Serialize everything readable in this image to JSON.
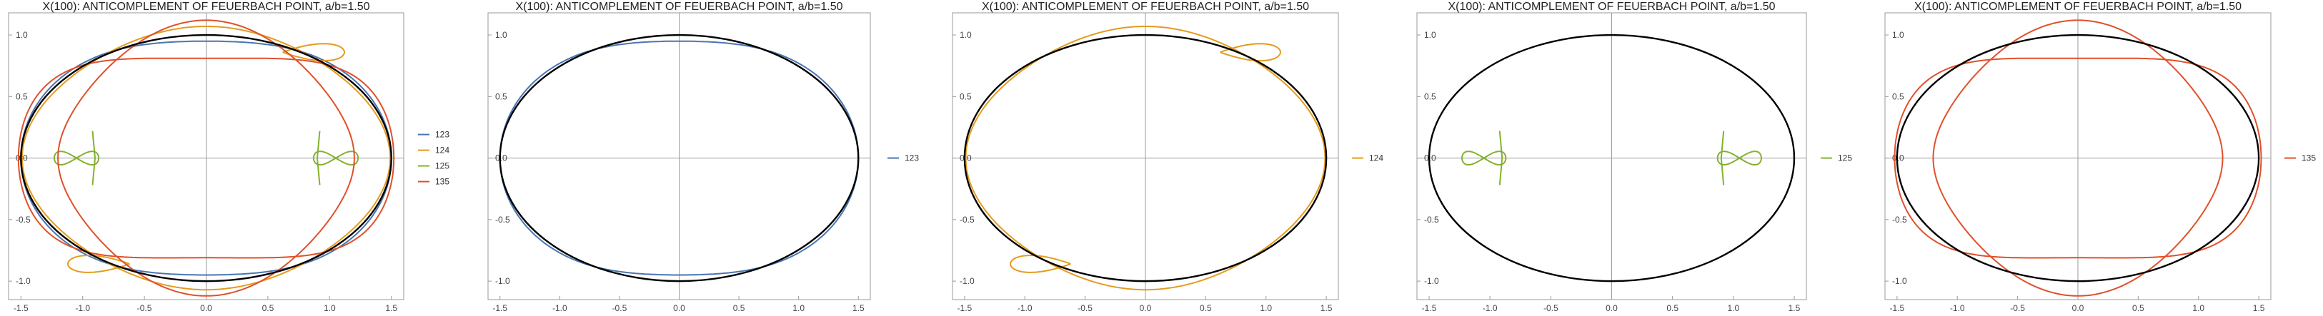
{
  "chart_data": [
    {
      "type": "line",
      "title": "X(100): ANTICOMPLEMENT OF FEUERBACH POINT, a/b=1.50",
      "xlim": [
        -1.6,
        1.6
      ],
      "ylim": [
        -1.15,
        1.18
      ],
      "xticks": [
        -1.5,
        -1.0,
        -0.5,
        0.0,
        0.5,
        1.0,
        1.5
      ],
      "xtick_labels": [
        "-1.5",
        "-1.0",
        "-0.5",
        "0.0",
        "0.5",
        "1.0",
        "1.5"
      ],
      "yticks": [
        -1.0,
        -0.5,
        0.0,
        0.5,
        1.0
      ],
      "ytick_labels": [
        "-1.0",
        "-0.5",
        "0.0",
        "0.5",
        "1.0"
      ],
      "ellipse": {
        "a": 1.5,
        "b": 1.0,
        "color": "#000000"
      },
      "legend_position": "right",
      "series": [
        {
          "name": "123",
          "color": "#4a75b0"
        },
        {
          "name": "124",
          "color": "#e59b1e"
        },
        {
          "name": "125",
          "color": "#84b22e"
        },
        {
          "name": "135",
          "color": "#e0502a"
        }
      ]
    },
    {
      "type": "line",
      "title": "X(100): ANTICOMPLEMENT OF FEUERBACH POINT, a/b=1.50",
      "xlim": [
        -1.6,
        1.6
      ],
      "ylim": [
        -1.15,
        1.18
      ],
      "xticks": [
        -1.5,
        -1.0,
        -0.5,
        0.0,
        0.5,
        1.0,
        1.5
      ],
      "xtick_labels": [
        "-1.5",
        "-1.0",
        "-0.5",
        "0.0",
        "0.5",
        "1.0",
        "1.5"
      ],
      "yticks": [
        -1.0,
        -0.5,
        0.0,
        0.5,
        1.0
      ],
      "ytick_labels": [
        "-1.0",
        "-0.5",
        "0.0",
        "0.5",
        "1.0"
      ],
      "ellipse": {
        "a": 1.5,
        "b": 1.0,
        "color": "#000000"
      },
      "legend_position": "right",
      "series": [
        {
          "name": "123",
          "color": "#4a75b0"
        }
      ]
    },
    {
      "type": "line",
      "title": "X(100): ANTICOMPLEMENT OF FEUERBACH POINT, a/b=1.50",
      "xlim": [
        -1.6,
        1.6
      ],
      "ylim": [
        -1.15,
        1.18
      ],
      "xticks": [
        -1.5,
        -1.0,
        -0.5,
        0.0,
        0.5,
        1.0,
        1.5
      ],
      "xtick_labels": [
        "-1.5",
        "-1.0",
        "-0.5",
        "0.0",
        "0.5",
        "1.0",
        "1.5"
      ],
      "yticks": [
        -1.0,
        -0.5,
        0.0,
        0.5,
        1.0
      ],
      "ytick_labels": [
        "-1.0",
        "-0.5",
        "0.0",
        "0.5",
        "1.0"
      ],
      "ellipse": {
        "a": 1.5,
        "b": 1.0,
        "color": "#000000"
      },
      "legend_position": "right",
      "series": [
        {
          "name": "124",
          "color": "#e59b1e"
        }
      ]
    },
    {
      "type": "line",
      "title": "X(100): ANTICOMPLEMENT OF FEUERBACH POINT, a/b=1.50",
      "xlim": [
        -1.6,
        1.6
      ],
      "ylim": [
        -1.15,
        1.18
      ],
      "xticks": [
        -1.5,
        -1.0,
        -0.5,
        0.0,
        0.5,
        1.0,
        1.5
      ],
      "xtick_labels": [
        "-1.5",
        "-1.0",
        "-0.5",
        "0.0",
        "0.5",
        "1.0",
        "1.5"
      ],
      "yticks": [
        -1.0,
        -0.5,
        0.0,
        0.5,
        1.0
      ],
      "ytick_labels": [
        "-1.0",
        "-0.5",
        "0.0",
        "0.5",
        "1.0"
      ],
      "ellipse": {
        "a": 1.5,
        "b": 1.0,
        "color": "#000000"
      },
      "legend_position": "right",
      "series": [
        {
          "name": "125",
          "color": "#84b22e"
        }
      ]
    },
    {
      "type": "line",
      "title": "X(100): ANTICOMPLEMENT OF FEUERBACH POINT, a/b=1.50",
      "xlim": [
        -1.6,
        1.6
      ],
      "ylim": [
        -1.15,
        1.18
      ],
      "xticks": [
        -1.5,
        -1.0,
        -0.5,
        0.0,
        0.5,
        1.0,
        1.5
      ],
      "xtick_labels": [
        "-1.5",
        "-1.0",
        "-0.5",
        "0.0",
        "0.5",
        "1.0",
        "1.5"
      ],
      "yticks": [
        -1.0,
        -0.5,
        0.0,
        0.5,
        1.0
      ],
      "ytick_labels": [
        "-1.0",
        "-0.5",
        "0.0",
        "0.5",
        "1.0"
      ],
      "ellipse": {
        "a": 1.5,
        "b": 1.0,
        "color": "#000000"
      },
      "legend_position": "right",
      "series": [
        {
          "name": "135",
          "color": "#e0502a"
        }
      ]
    }
  ]
}
